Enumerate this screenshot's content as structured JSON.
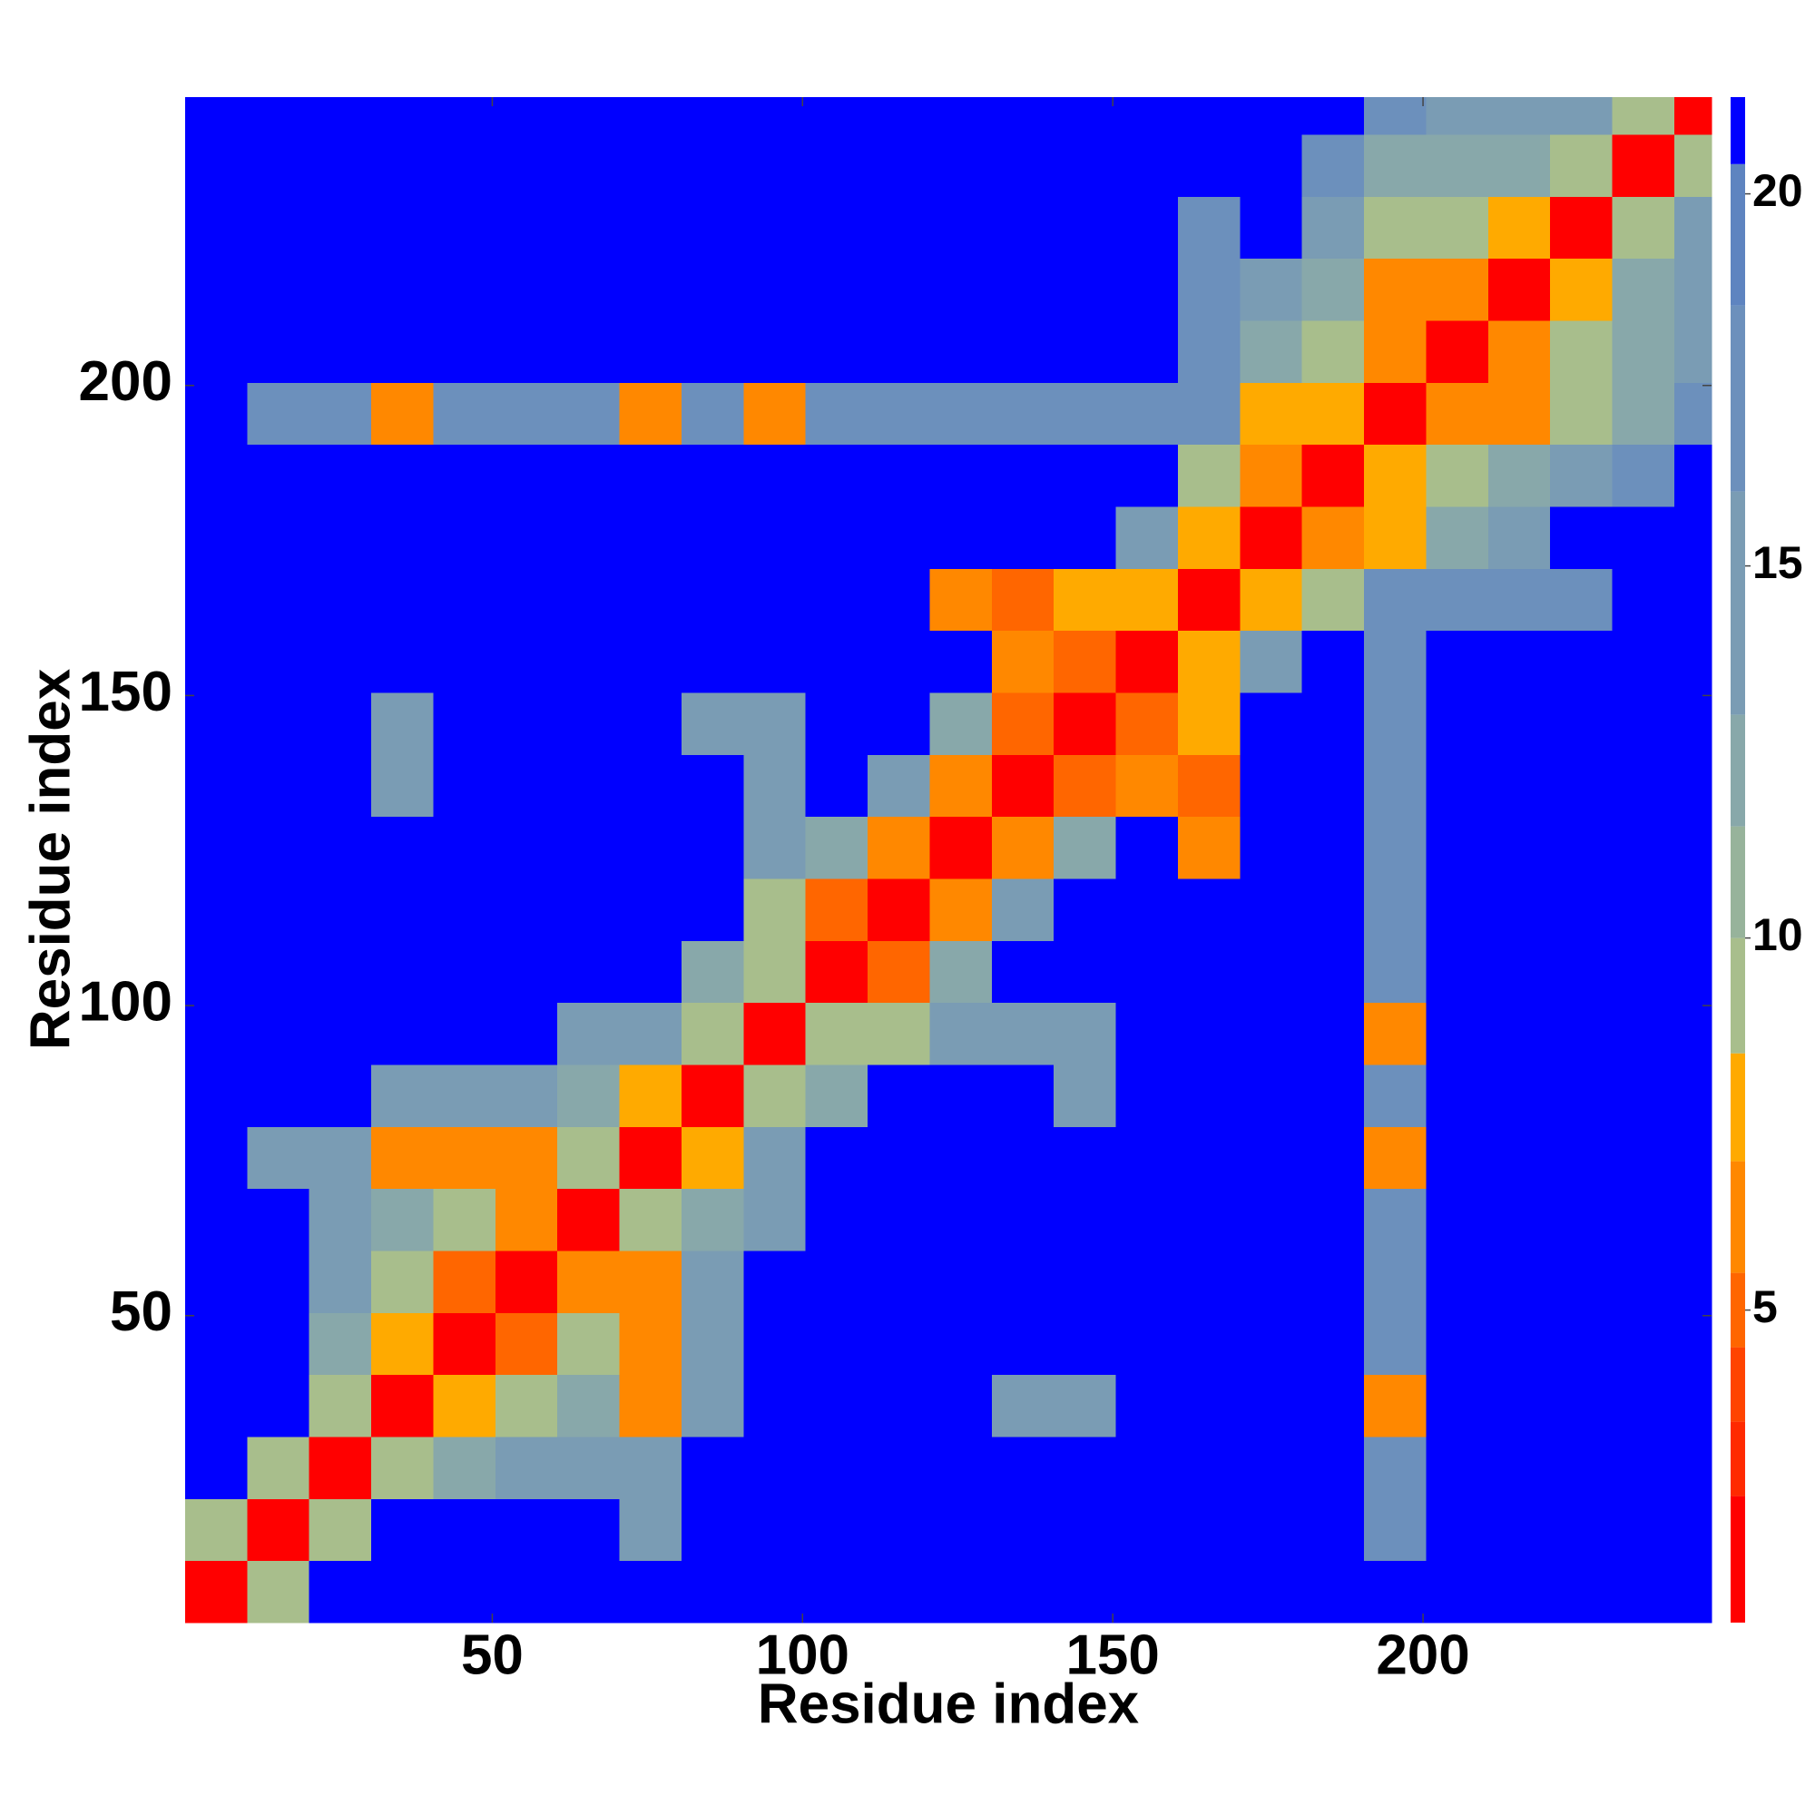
{
  "chart_data": {
    "type": "heatmap",
    "xlabel": "Residue index",
    "ylabel": "Residue index",
    "xlim": [
      0.5,
      246.5
    ],
    "ylim": [
      0.5,
      246.5
    ],
    "xticks": [
      50,
      100,
      150,
      200
    ],
    "yticks": [
      50,
      100,
      150,
      200
    ],
    "xbins": [
      0.5,
      10.5,
      20.5,
      30.5,
      40.5,
      50.5,
      60.5,
      70.5,
      80.5,
      90.5,
      100.5,
      110.5,
      120.5,
      130.5,
      140.5,
      150.5,
      160.5,
      170.5,
      180.5,
      190.5,
      200.5,
      210.5,
      220.5,
      230.5,
      240.5,
      246.5
    ],
    "ybins": [
      0.5,
      10.5,
      20.5,
      30.5,
      40.5,
      50.5,
      60.5,
      70.5,
      80.5,
      90.5,
      100.5,
      110.5,
      120.5,
      130.5,
      140.5,
      150.5,
      160.5,
      170.5,
      180.5,
      190.5,
      200.5,
      210.5,
      220.5,
      230.5,
      240.5,
      246.5
    ],
    "values": [
      [
        1,
        10,
        21,
        21,
        21,
        21,
        21,
        21,
        21,
        21,
        21,
        21,
        21,
        21,
        21,
        21,
        21,
        21,
        21,
        21,
        21,
        21,
        21,
        21,
        21
      ],
      [
        10,
        1,
        9,
        21,
        21,
        21,
        21,
        14,
        21,
        21,
        21,
        21,
        21,
        21,
        21,
        21,
        21,
        21,
        21,
        17,
        21,
        21,
        21,
        21,
        21
      ],
      [
        21,
        9,
        1,
        9,
        12,
        14,
        14,
        14,
        21,
        21,
        21,
        21,
        21,
        21,
        21,
        21,
        21,
        21,
        21,
        17,
        21,
        21,
        21,
        21,
        21
      ],
      [
        21,
        21,
        9,
        1,
        8,
        10,
        12,
        6,
        14,
        21,
        21,
        21,
        21,
        15,
        15,
        21,
        21,
        21,
        21,
        6,
        21,
        21,
        21,
        21,
        21
      ],
      [
        21,
        21,
        12,
        8,
        1,
        5,
        10,
        6,
        14,
        21,
        21,
        21,
        21,
        21,
        21,
        21,
        21,
        21,
        21,
        17,
        21,
        21,
        21,
        21,
        21
      ],
      [
        21,
        21,
        14,
        10,
        5,
        1,
        6,
        6,
        14,
        21,
        21,
        21,
        21,
        21,
        21,
        21,
        21,
        21,
        21,
        17,
        21,
        21,
        21,
        21,
        21
      ],
      [
        21,
        21,
        14,
        12,
        10,
        6,
        1,
        9,
        12,
        14,
        21,
        21,
        21,
        21,
        21,
        21,
        21,
        21,
        21,
        17,
        21,
        21,
        21,
        21,
        21
      ],
      [
        21,
        14,
        14,
        6,
        6,
        6,
        9,
        1,
        8,
        14,
        21,
        21,
        21,
        21,
        21,
        21,
        21,
        21,
        21,
        6,
        21,
        21,
        21,
        21,
        21
      ],
      [
        21,
        21,
        21,
        14,
        14,
        14,
        12,
        8,
        1,
        9,
        12,
        21,
        21,
        21,
        15,
        21,
        21,
        21,
        21,
        17,
        21,
        21,
        21,
        21,
        21
      ],
      [
        21,
        21,
        21,
        21,
        21,
        21,
        14,
        14,
        9,
        1,
        10,
        10,
        14,
        14,
        14,
        21,
        21,
        21,
        21,
        6,
        21,
        21,
        21,
        21,
        21
      ],
      [
        21,
        21,
        21,
        21,
        21,
        21,
        21,
        21,
        12,
        10,
        1,
        5,
        12,
        21,
        21,
        21,
        21,
        21,
        21,
        17,
        21,
        21,
        21,
        21,
        21
      ],
      [
        21,
        21,
        21,
        21,
        21,
        21,
        21,
        21,
        21,
        10,
        5,
        1,
        6,
        14,
        21,
        21,
        21,
        21,
        21,
        17,
        21,
        21,
        21,
        21,
        21
      ],
      [
        21,
        21,
        21,
        21,
        21,
        21,
        21,
        21,
        21,
        14,
        12,
        6,
        1,
        6,
        12,
        21,
        6,
        21,
        21,
        17,
        21,
        21,
        21,
        21,
        21
      ],
      [
        21,
        21,
        21,
        15,
        21,
        21,
        21,
        21,
        21,
        14,
        21,
        14,
        6,
        1,
        5,
        6,
        5,
        21,
        21,
        17,
        21,
        21,
        21,
        21,
        21
      ],
      [
        21,
        21,
        21,
        15,
        21,
        21,
        21,
        21,
        15,
        14,
        21,
        21,
        12,
        5,
        1,
        5,
        8,
        21,
        21,
        17,
        21,
        21,
        21,
        21,
        21
      ],
      [
        21,
        21,
        21,
        21,
        21,
        21,
        21,
        21,
        21,
        21,
        21,
        21,
        21,
        6,
        5,
        1,
        8,
        14,
        21,
        17,
        21,
        21,
        21,
        21,
        21
      ],
      [
        21,
        21,
        21,
        21,
        21,
        21,
        21,
        21,
        21,
        21,
        21,
        21,
        6,
        5,
        8,
        8,
        1,
        8,
        10,
        17,
        17,
        17,
        17,
        21,
        21
      ],
      [
        21,
        21,
        21,
        21,
        21,
        21,
        21,
        21,
        21,
        21,
        21,
        21,
        21,
        21,
        21,
        14,
        8,
        1,
        6,
        8,
        12,
        14,
        21,
        21,
        21
      ],
      [
        21,
        21,
        21,
        21,
        21,
        21,
        21,
        21,
        21,
        21,
        21,
        21,
        21,
        21,
        21,
        21,
        10,
        6,
        1,
        8,
        10,
        12,
        14,
        17,
        21
      ],
      [
        21,
        17,
        17,
        6,
        17,
        17,
        17,
        6,
        17,
        6,
        17,
        17,
        17,
        17,
        17,
        17,
        17,
        8,
        8,
        1,
        6,
        6,
        10,
        12,
        17
      ],
      [
        21,
        21,
        21,
        21,
        21,
        21,
        21,
        21,
        21,
        21,
        21,
        21,
        21,
        21,
        21,
        21,
        17,
        12,
        10,
        6,
        1,
        6,
        10,
        12,
        14
      ],
      [
        21,
        21,
        21,
        21,
        21,
        21,
        21,
        21,
        21,
        21,
        21,
        21,
        21,
        21,
        21,
        21,
        17,
        14,
        12,
        6,
        6,
        1,
        8,
        12,
        14
      ],
      [
        21,
        21,
        21,
        21,
        21,
        21,
        21,
        21,
        21,
        21,
        21,
        21,
        21,
        21,
        21,
        21,
        17,
        21,
        14,
        10,
        10,
        8,
        1,
        9,
        14
      ],
      [
        21,
        21,
        21,
        21,
        21,
        21,
        21,
        21,
        21,
        21,
        21,
        21,
        21,
        21,
        21,
        21,
        21,
        21,
        17,
        12,
        12,
        12,
        9,
        1,
        9
      ],
      [
        21,
        21,
        21,
        21,
        21,
        21,
        21,
        21,
        21,
        21,
        21,
        21,
        21,
        21,
        21,
        21,
        21,
        21,
        21,
        17,
        14,
        14,
        14,
        9,
        1
      ]
    ],
    "clim": [
      0.8,
      21.3
    ],
    "colorbar_ticks": [
      5,
      10,
      15,
      20
    ],
    "colormap": [
      {
        "max": 2.5,
        "color": "#ff0000"
      },
      {
        "max": 3.5,
        "color": "#ff2a00"
      },
      {
        "max": 4.5,
        "color": "#ff4400"
      },
      {
        "max": 5.5,
        "color": "#ff6600"
      },
      {
        "max": 7,
        "color": "#ff8800"
      },
      {
        "max": 8.45,
        "color": "#ffaa00"
      },
      {
        "max": 10,
        "color": "#a8be8c"
      },
      {
        "max": 11.5,
        "color": "#97b39b"
      },
      {
        "max": 13,
        "color": "#88a8aa"
      },
      {
        "max": 16,
        "color": "#7a9cb4"
      },
      {
        "max": 18.5,
        "color": "#6c90bc"
      },
      {
        "max": 20.4,
        "color": "#5e84c0"
      },
      {
        "max": 21.3,
        "color": "#0000ff"
      }
    ]
  }
}
